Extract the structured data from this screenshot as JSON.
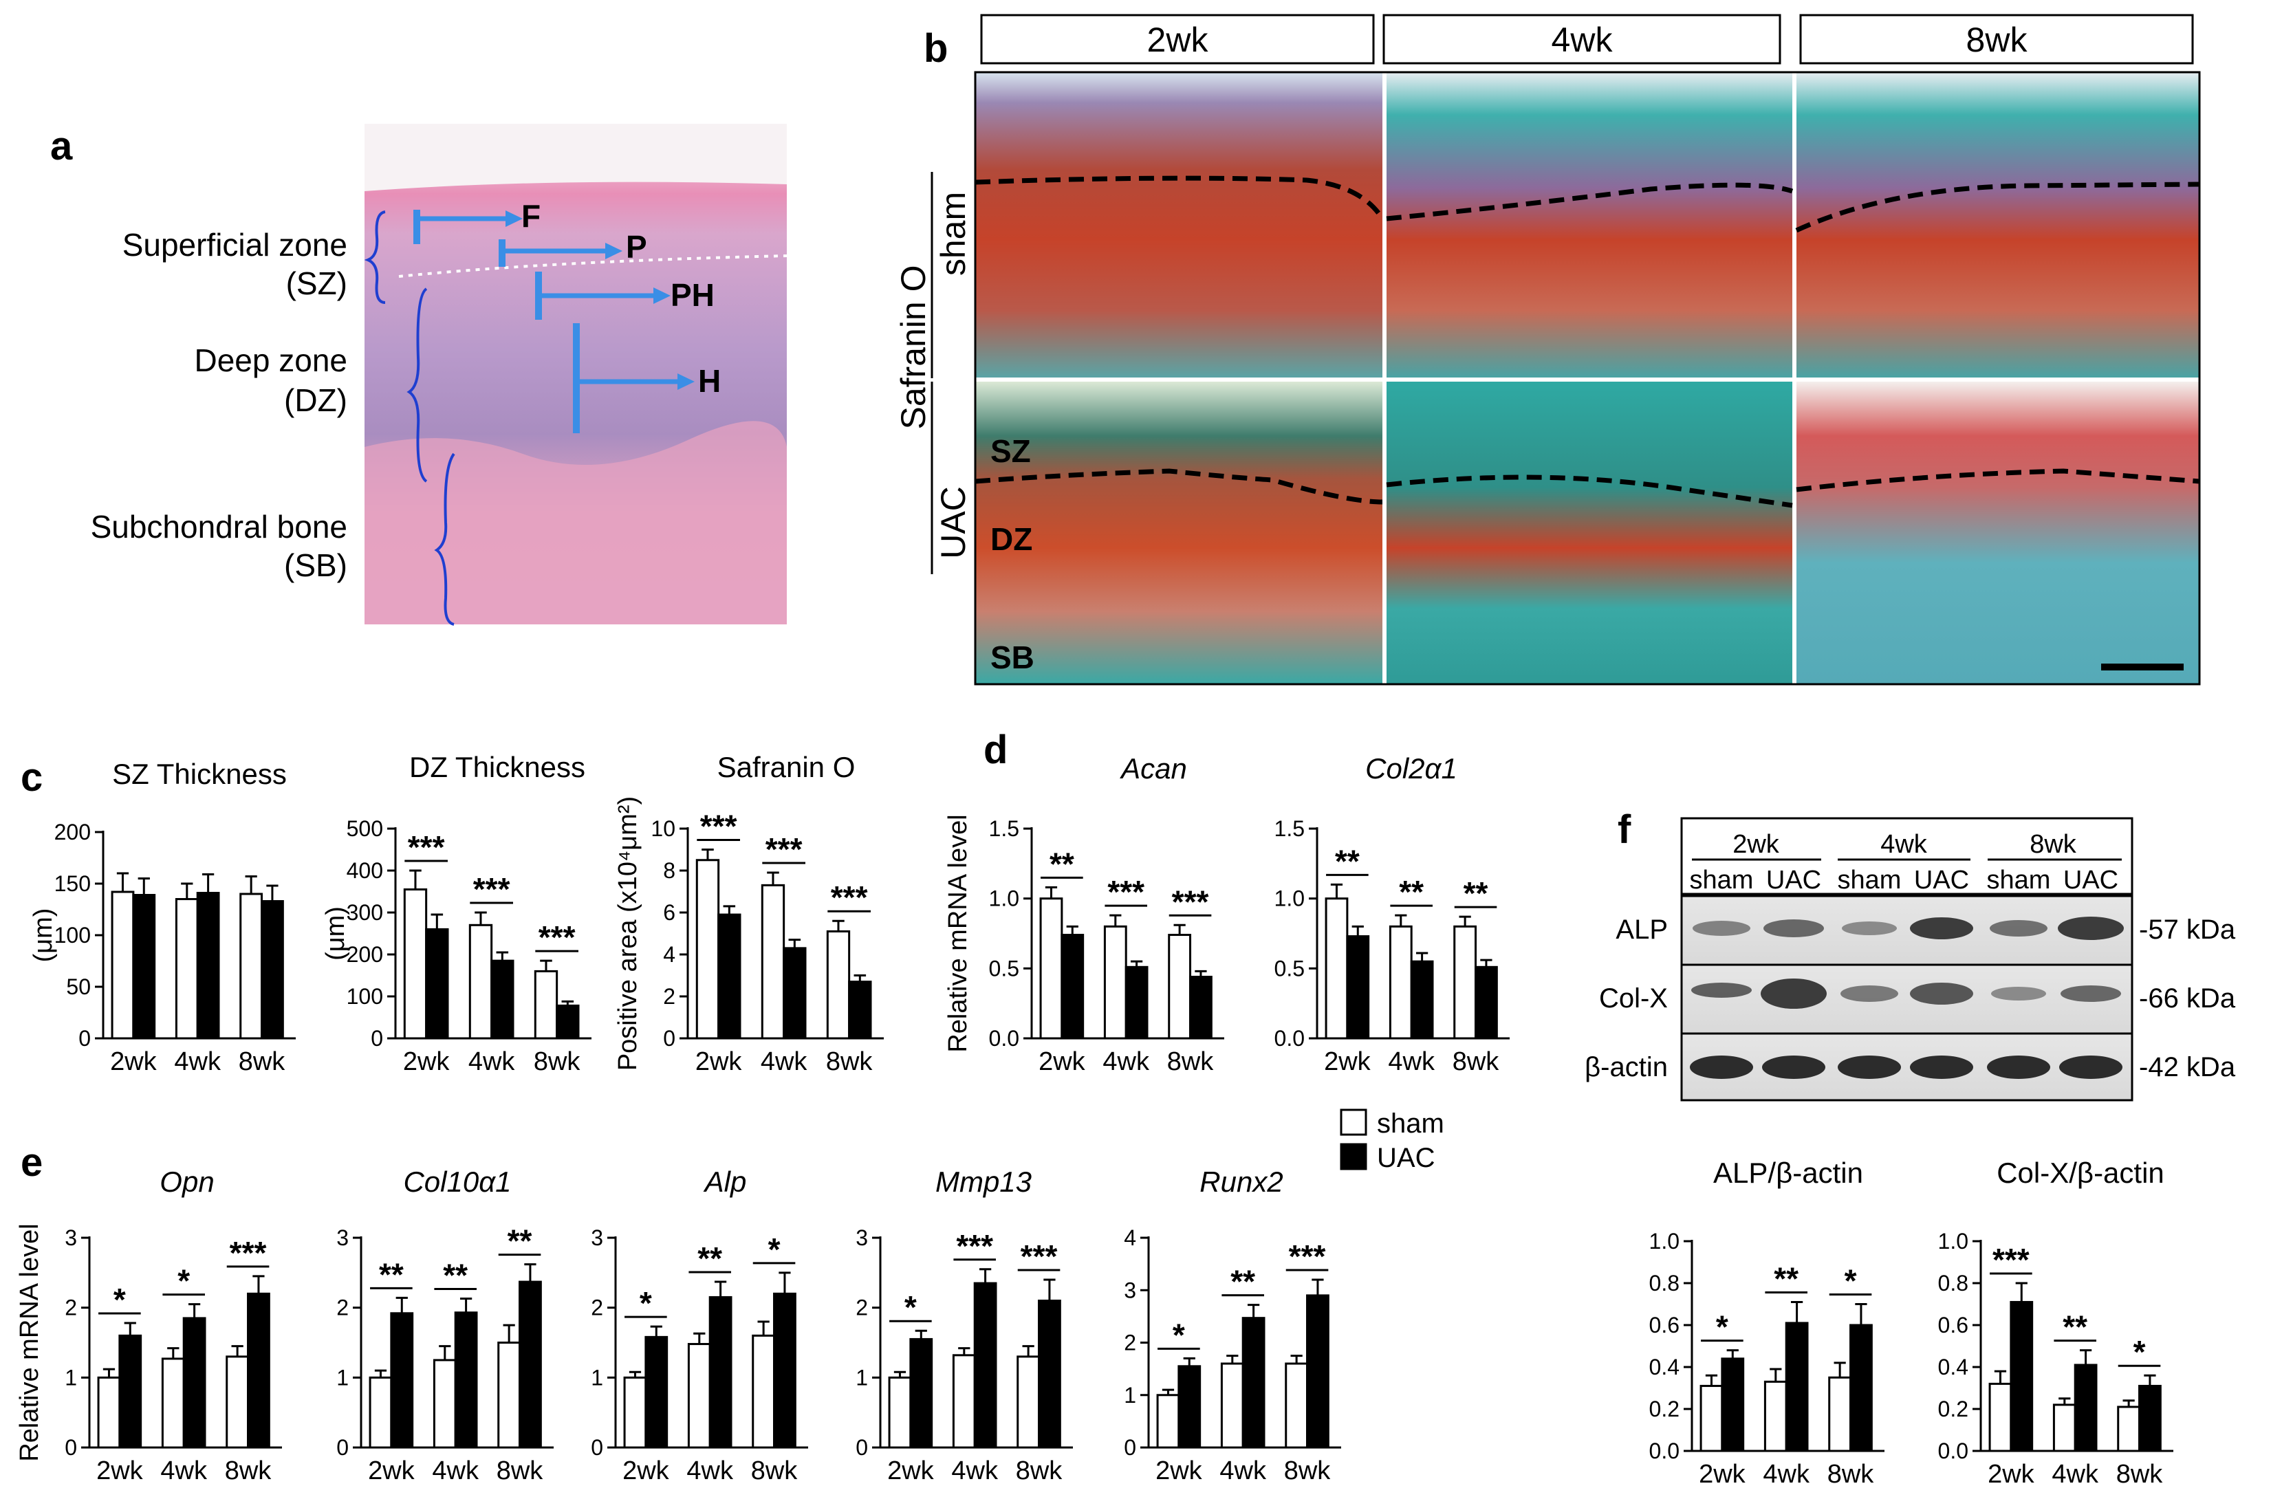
{
  "panel_letters": [
    "a",
    "b",
    "c",
    "d",
    "e",
    "f"
  ],
  "panel_a": {
    "zones": [
      {
        "name": "Superficial zone",
        "abbr": "(SZ)"
      },
      {
        "name": "Deep zone",
        "abbr": "(DZ)"
      },
      {
        "name": "Subchondral bone",
        "abbr": "(SB)"
      }
    ],
    "markers": [
      "F",
      "P",
      "PH",
      "H"
    ],
    "colors": {
      "he_pink": "#e9a3c4",
      "he_purple": "#b99acb",
      "marker_blue": "#3a8ee6"
    }
  },
  "panel_b": {
    "timepoints": [
      "2wk",
      "4wk",
      "8wk"
    ],
    "stain_label": "Safranin O",
    "group_labels": [
      "sham",
      "UAC"
    ],
    "zone_labels": [
      "SZ",
      "DZ",
      "SB"
    ],
    "colors": {
      "safranin_red": "#c6432a",
      "fast_green": "#3aa9a5",
      "purple": "#8d6a9b"
    }
  },
  "legend": {
    "items": [
      {
        "label": "sham",
        "color": "#ffffff"
      },
      {
        "label": "UAC",
        "color": "#000000"
      }
    ]
  },
  "panel_f_blot": {
    "timepoints": [
      "2wk",
      "4wk",
      "8wk"
    ],
    "lanes": [
      "sham",
      "UAC",
      "sham",
      "UAC",
      "sham",
      "UAC"
    ],
    "rows": [
      {
        "protein": "ALP",
        "size": "-57 kDa"
      },
      {
        "protein": "Col-X",
        "size": "-66 kDa"
      },
      {
        "protein": "β-actin",
        "size": "-42 kDa"
      }
    ]
  },
  "chart_data": [
    {
      "id": "c1",
      "panel": "c",
      "type": "bar",
      "title": "SZ Thickness",
      "title_italic": false,
      "ylabel": "(μm)",
      "categories": [
        "2wk",
        "4wk",
        "8wk"
      ],
      "ylim": [
        0,
        200
      ],
      "yticks": [
        "0",
        "50",
        "100",
        "150",
        "200"
      ],
      "series": [
        {
          "name": "sham",
          "values": [
            142,
            135,
            140
          ],
          "errors": [
            18,
            15,
            17
          ]
        },
        {
          "name": "UAC",
          "values": [
            139,
            141,
            133
          ],
          "errors": [
            16,
            18,
            15
          ]
        }
      ],
      "significance": [
        "",
        "",
        ""
      ]
    },
    {
      "id": "c2",
      "panel": "c",
      "type": "bar",
      "title": "DZ Thickness",
      "title_italic": false,
      "ylabel": "(μm)",
      "categories": [
        "2wk",
        "4wk",
        "8wk"
      ],
      "ylim": [
        0,
        500
      ],
      "yticks": [
        "0",
        "100",
        "200",
        "300",
        "400",
        "500"
      ],
      "series": [
        {
          "name": "sham",
          "values": [
            355,
            270,
            160
          ],
          "errors": [
            45,
            30,
            25
          ]
        },
        {
          "name": "UAC",
          "values": [
            260,
            185,
            78
          ],
          "errors": [
            35,
            20,
            10
          ]
        }
      ],
      "significance": [
        "***",
        "***",
        "***"
      ]
    },
    {
      "id": "c3",
      "panel": "c",
      "type": "bar",
      "title": "Safranin O",
      "title_italic": false,
      "ylabel": "Positive area (x10⁴μm²)",
      "categories": [
        "2wk",
        "4wk",
        "8wk"
      ],
      "ylim": [
        0,
        10
      ],
      "yticks": [
        "0",
        "2",
        "4",
        "6",
        "8",
        "10"
      ],
      "series": [
        {
          "name": "sham",
          "values": [
            8.5,
            7.3,
            5.1
          ],
          "errors": [
            0.5,
            0.6,
            0.5
          ]
        },
        {
          "name": "UAC",
          "values": [
            5.9,
            4.3,
            2.7
          ],
          "errors": [
            0.4,
            0.4,
            0.3
          ]
        }
      ],
      "significance": [
        "***",
        "***",
        "***"
      ]
    },
    {
      "id": "d1",
      "panel": "d",
      "type": "bar",
      "title": "Acan",
      "title_italic": true,
      "ylabel": "Relative mRNA level",
      "categories": [
        "2wk",
        "4wk",
        "8wk"
      ],
      "ylim": [
        0,
        1.5
      ],
      "yticks": [
        "0.0",
        "0.5",
        "1.0",
        "1.5"
      ],
      "series": [
        {
          "name": "sham",
          "values": [
            1.0,
            0.8,
            0.74
          ],
          "errors": [
            0.08,
            0.08,
            0.07
          ]
        },
        {
          "name": "UAC",
          "values": [
            0.74,
            0.51,
            0.44
          ],
          "errors": [
            0.06,
            0.04,
            0.04
          ]
        }
      ],
      "significance": [
        "**",
        "***",
        "***"
      ]
    },
    {
      "id": "d2",
      "panel": "d",
      "type": "bar",
      "title": "Col2α1",
      "title_italic": true,
      "ylabel": "",
      "categories": [
        "2wk",
        "4wk",
        "8wk"
      ],
      "ylim": [
        0,
        1.5
      ],
      "yticks": [
        "0.0",
        "0.5",
        "1.0",
        "1.5"
      ],
      "series": [
        {
          "name": "sham",
          "values": [
            1.0,
            0.8,
            0.8
          ],
          "errors": [
            0.1,
            0.08,
            0.07
          ]
        },
        {
          "name": "UAC",
          "values": [
            0.73,
            0.55,
            0.51
          ],
          "errors": [
            0.07,
            0.06,
            0.05
          ]
        }
      ],
      "significance": [
        "**",
        "**",
        "**"
      ]
    },
    {
      "id": "e1",
      "panel": "e",
      "type": "bar",
      "title": "Opn",
      "title_italic": true,
      "ylabel": "Relative mRNA level",
      "categories": [
        "2wk",
        "4wk",
        "8wk"
      ],
      "ylim": [
        0,
        3
      ],
      "yticks": [
        "0",
        "1",
        "2",
        "3"
      ],
      "series": [
        {
          "name": "sham",
          "values": [
            1.0,
            1.27,
            1.3
          ],
          "errors": [
            0.12,
            0.15,
            0.15
          ]
        },
        {
          "name": "UAC",
          "values": [
            1.6,
            1.85,
            2.2
          ],
          "errors": [
            0.18,
            0.2,
            0.25
          ]
        }
      ],
      "significance": [
        "*",
        "*",
        "***"
      ]
    },
    {
      "id": "e2",
      "panel": "e",
      "type": "bar",
      "title": "Col10α1",
      "title_italic": true,
      "ylabel": "",
      "categories": [
        "2wk",
        "4wk",
        "8wk"
      ],
      "ylim": [
        0,
        3
      ],
      "yticks": [
        "0",
        "1",
        "2",
        "3"
      ],
      "series": [
        {
          "name": "sham",
          "values": [
            1.0,
            1.25,
            1.5
          ],
          "errors": [
            0.1,
            0.2,
            0.25
          ]
        },
        {
          "name": "UAC",
          "values": [
            1.92,
            1.93,
            2.37
          ],
          "errors": [
            0.22,
            0.2,
            0.25
          ]
        }
      ],
      "significance": [
        "**",
        "**",
        "**"
      ]
    },
    {
      "id": "e3",
      "panel": "e",
      "type": "bar",
      "title": "Alp",
      "title_italic": true,
      "ylabel": "",
      "categories": [
        "2wk",
        "4wk",
        "8wk"
      ],
      "ylim": [
        0,
        3
      ],
      "yticks": [
        "0",
        "1",
        "2",
        "3"
      ],
      "series": [
        {
          "name": "sham",
          "values": [
            1.0,
            1.48,
            1.6
          ],
          "errors": [
            0.08,
            0.15,
            0.2
          ]
        },
        {
          "name": "UAC",
          "values": [
            1.58,
            2.15,
            2.2
          ],
          "errors": [
            0.15,
            0.22,
            0.3
          ]
        }
      ],
      "significance": [
        "*",
        "**",
        "*"
      ]
    },
    {
      "id": "e4",
      "panel": "e",
      "type": "bar",
      "title": "Mmp13",
      "title_italic": true,
      "ylabel": "",
      "categories": [
        "2wk",
        "4wk",
        "8wk"
      ],
      "ylim": [
        0,
        3
      ],
      "yticks": [
        "0",
        "1",
        "2",
        "3"
      ],
      "series": [
        {
          "name": "sham",
          "values": [
            1.0,
            1.32,
            1.3
          ],
          "errors": [
            0.08,
            0.1,
            0.15
          ]
        },
        {
          "name": "UAC",
          "values": [
            1.55,
            2.35,
            2.1
          ],
          "errors": [
            0.12,
            0.2,
            0.3
          ]
        }
      ],
      "significance": [
        "*",
        "***",
        "***"
      ]
    },
    {
      "id": "e5",
      "panel": "e",
      "type": "bar",
      "title": "Runx2",
      "title_italic": true,
      "ylabel": "",
      "categories": [
        "2wk",
        "4wk",
        "8wk"
      ],
      "ylim": [
        0,
        4
      ],
      "yticks": [
        "0",
        "1",
        "2",
        "3",
        "4"
      ],
      "series": [
        {
          "name": "sham",
          "values": [
            1.0,
            1.6,
            1.6
          ],
          "errors": [
            0.1,
            0.15,
            0.15
          ]
        },
        {
          "name": "UAC",
          "values": [
            1.55,
            2.47,
            2.9
          ],
          "errors": [
            0.15,
            0.25,
            0.3
          ]
        }
      ],
      "significance": [
        "*",
        "**",
        "***"
      ]
    },
    {
      "id": "f1",
      "panel": "f",
      "type": "bar",
      "title": "ALP/β-actin",
      "title_italic": false,
      "ylabel": "",
      "categories": [
        "2wk",
        "4wk",
        "8wk"
      ],
      "ylim": [
        0,
        1.0
      ],
      "yticks": [
        "0.0",
        "0.2",
        "0.4",
        "0.6",
        "0.8",
        "1.0"
      ],
      "series": [
        {
          "name": "sham",
          "values": [
            0.31,
            0.33,
            0.35
          ],
          "errors": [
            0.05,
            0.06,
            0.07
          ]
        },
        {
          "name": "UAC",
          "values": [
            0.44,
            0.61,
            0.6
          ],
          "errors": [
            0.04,
            0.1,
            0.1
          ]
        }
      ],
      "significance": [
        "*",
        "**",
        "*"
      ]
    },
    {
      "id": "f2",
      "panel": "f",
      "type": "bar",
      "title": "Col-X/β-actin",
      "title_italic": false,
      "ylabel": "",
      "categories": [
        "2wk",
        "4wk",
        "8wk"
      ],
      "ylim": [
        0,
        1.0
      ],
      "yticks": [
        "0.0",
        "0.2",
        "0.4",
        "0.6",
        "0.8",
        "1.0"
      ],
      "series": [
        {
          "name": "sham",
          "values": [
            0.32,
            0.22,
            0.21
          ],
          "errors": [
            0.06,
            0.03,
            0.03
          ]
        },
        {
          "name": "UAC",
          "values": [
            0.71,
            0.41,
            0.31
          ],
          "errors": [
            0.09,
            0.07,
            0.05
          ]
        }
      ],
      "significance": [
        "***",
        "**",
        "*"
      ]
    }
  ]
}
